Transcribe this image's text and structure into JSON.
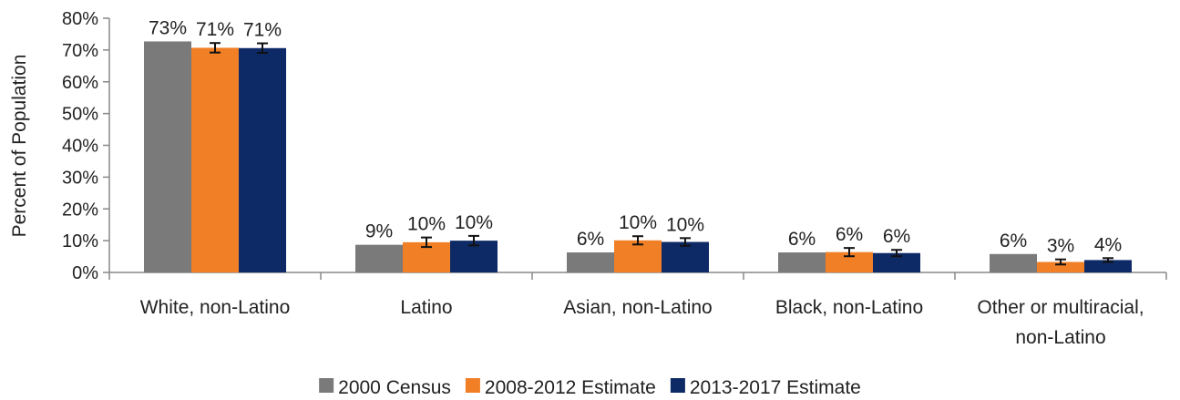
{
  "chart_data": {
    "type": "bar",
    "ylabel": "Percent of Population",
    "ylim": [
      0,
      80
    ],
    "yticks": [
      0,
      10,
      20,
      30,
      40,
      50,
      60,
      70,
      80
    ],
    "ytick_suffix": "%",
    "grid": false,
    "legend_position": "bottom",
    "categories": [
      [
        "White, non-Latino"
      ],
      [
        "Latino"
      ],
      [
        "Asian, non-Latino"
      ],
      [
        "Black, non-Latino"
      ],
      [
        "Other or multiracial,",
        "non-Latino"
      ]
    ],
    "series": [
      {
        "name": "2000 Census",
        "color": "#7a7a7a",
        "values": [
          72.7,
          8.7,
          6.3,
          6.3,
          5.8
        ],
        "labels": [
          "73%",
          "9%",
          "6%",
          "6%",
          "6%"
        ]
      },
      {
        "name": "2008-2012 Estimate",
        "color": "#f07f26",
        "values": [
          70.7,
          9.5,
          10.1,
          6.4,
          3.3
        ],
        "errors": [
          1.5,
          1.5,
          1.3,
          1.3,
          0.8
        ],
        "labels": [
          "71%",
          "10%",
          "10%",
          "6%",
          "3%"
        ]
      },
      {
        "name": "2013-2017 Estimate",
        "color": "#0e2a66",
        "values": [
          70.6,
          10.0,
          9.6,
          6.1,
          3.9
        ],
        "errors": [
          1.5,
          1.5,
          1.2,
          1.0,
          0.6
        ],
        "labels": [
          "71%",
          "10%",
          "10%",
          "6%",
          "4%"
        ]
      }
    ]
  }
}
